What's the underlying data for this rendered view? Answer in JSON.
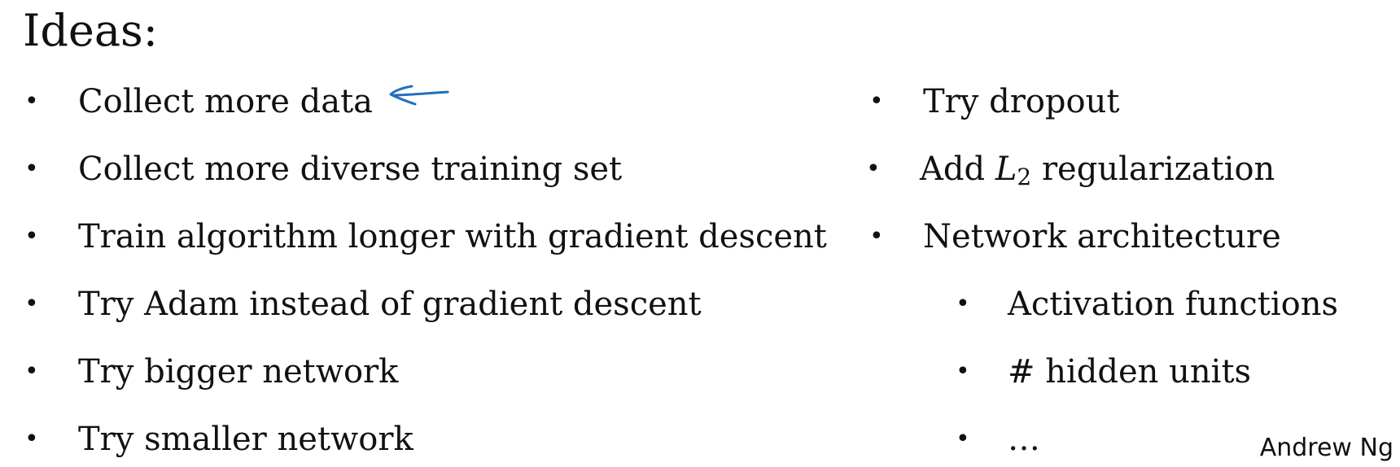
{
  "slide": {
    "title": "Ideas:",
    "bullet_glyph": "•",
    "left_items": [
      "Collect more data",
      "Collect more diverse training set",
      "Train algorithm longer with gradient descent",
      "Try Adam instead of gradient descent",
      "Try bigger network",
      "Try smaller network"
    ],
    "right_items": [
      "Try dropout",
      "Network architecture"
    ],
    "l2_item": {
      "prefix": "Add",
      "symbol": "L",
      "subscript": "2",
      "suffix": "regularization"
    },
    "sub_items": [
      "Activation functions",
      "# hidden units",
      "…"
    ],
    "author": "Andrew Ng",
    "annotation": {
      "icon": "handwritten-arrow-icon",
      "color": "#1f6fbf"
    }
  }
}
